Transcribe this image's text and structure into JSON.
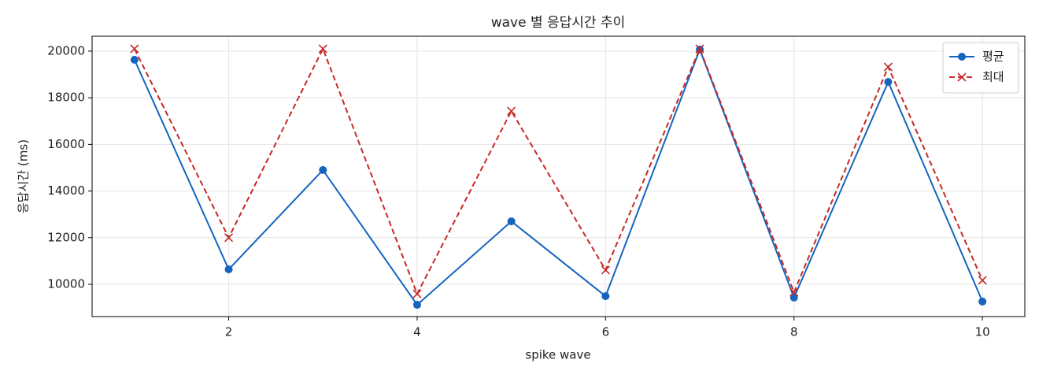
{
  "chart_data": {
    "type": "line",
    "title": "wave 별 응답시간 추이",
    "xlabel": "spike wave",
    "ylabel": "응답시간 (ms)",
    "x": [
      1,
      2,
      3,
      4,
      5,
      6,
      7,
      8,
      9,
      10
    ],
    "series": [
      {
        "name": "평균",
        "color": "#1565c0",
        "marker": "o",
        "linestyle": "solid",
        "values": [
          19630,
          10640,
          14900,
          9120,
          12700,
          9490,
          20070,
          9430,
          18680,
          9260
        ]
      },
      {
        "name": "최대",
        "color": "#c62828",
        "marker": "x",
        "linestyle": "dashed",
        "values": [
          20100,
          12000,
          20100,
          9590,
          17430,
          10610,
          20100,
          9660,
          19320,
          10170
        ]
      }
    ],
    "xlim": [
      0.55,
      10.45
    ],
    "xticks": [
      2,
      4,
      6,
      8,
      10
    ],
    "ylim": [
      8615,
      20640
    ],
    "yticks": [
      10000,
      12000,
      14000,
      16000,
      18000,
      20000
    ],
    "grid": true,
    "legend": "upper right"
  }
}
